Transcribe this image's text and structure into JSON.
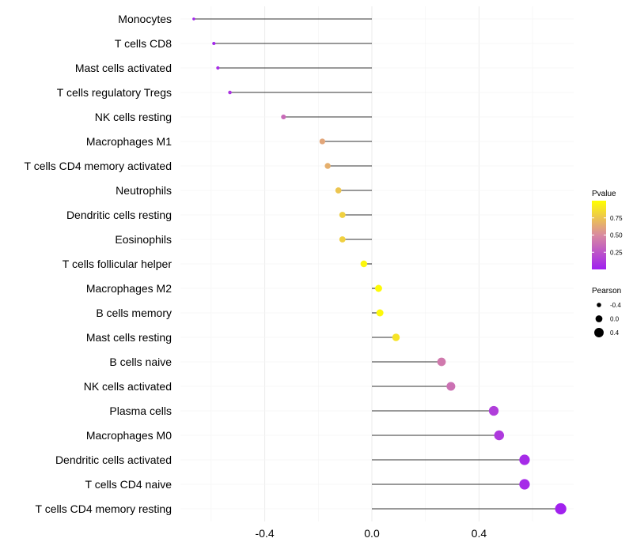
{
  "chart_data": {
    "type": "lollipop",
    "title": "",
    "xlabel": "",
    "ylabel": "",
    "xlim": [
      -0.7,
      0.72
    ],
    "xticks": [
      -0.4,
      0.0,
      0.4
    ],
    "x_tick_labels": [
      "-0.4",
      "0.0",
      "0.4"
    ],
    "baseline": 0.0,
    "grid": true,
    "categories": [
      "Monocytes",
      "T cells CD8",
      "Mast cells activated",
      "T cells regulatory  Tregs",
      "NK cells resting",
      "Macrophages M1",
      "T cells CD4 memory activated",
      "Neutrophils",
      "Dendritic cells resting",
      "Eosinophils",
      "T cells follicular helper",
      "Macrophages M2",
      "B cells memory",
      "Mast cells resting",
      "B cells naive",
      "NK cells activated",
      "Plasma cells",
      "Macrophages M0",
      "Dendritic cells activated",
      "T cells CD4 naive",
      "T cells CD4 memory resting"
    ],
    "pearson": [
      -0.665,
      -0.59,
      -0.575,
      -0.53,
      -0.33,
      -0.185,
      -0.165,
      -0.125,
      -0.11,
      -0.11,
      -0.03,
      0.025,
      0.03,
      0.09,
      0.26,
      0.295,
      0.455,
      0.475,
      0.57,
      0.57,
      0.705
    ],
    "pvalue": [
      0.02,
      0.03,
      0.06,
      0.1,
      0.35,
      0.62,
      0.66,
      0.75,
      0.8,
      0.8,
      0.96,
      0.98,
      0.97,
      0.88,
      0.42,
      0.38,
      0.14,
      0.12,
      0.05,
      0.05,
      0.01
    ],
    "legend_position": "right",
    "color_legend": {
      "title": "Pvalue",
      "tick_values": [
        0.75,
        0.5,
        0.25
      ],
      "tick_labels": [
        "0.75",
        "0.50",
        "0.25"
      ],
      "range": [
        0.0,
        1.0
      ],
      "low_color": "#a020f0",
      "mid_color": "#d98aa0",
      "high_color": "#ffff00"
    },
    "size_legend": {
      "title": "Pearson",
      "values": [
        -0.4,
        0.0,
        0.4
      ],
      "labels": [
        "-0.4",
        "0.0",
        "0.4"
      ]
    },
    "colors": {
      "stem": "#333333",
      "grid": "#ebebeb",
      "text": "#000000"
    }
  }
}
